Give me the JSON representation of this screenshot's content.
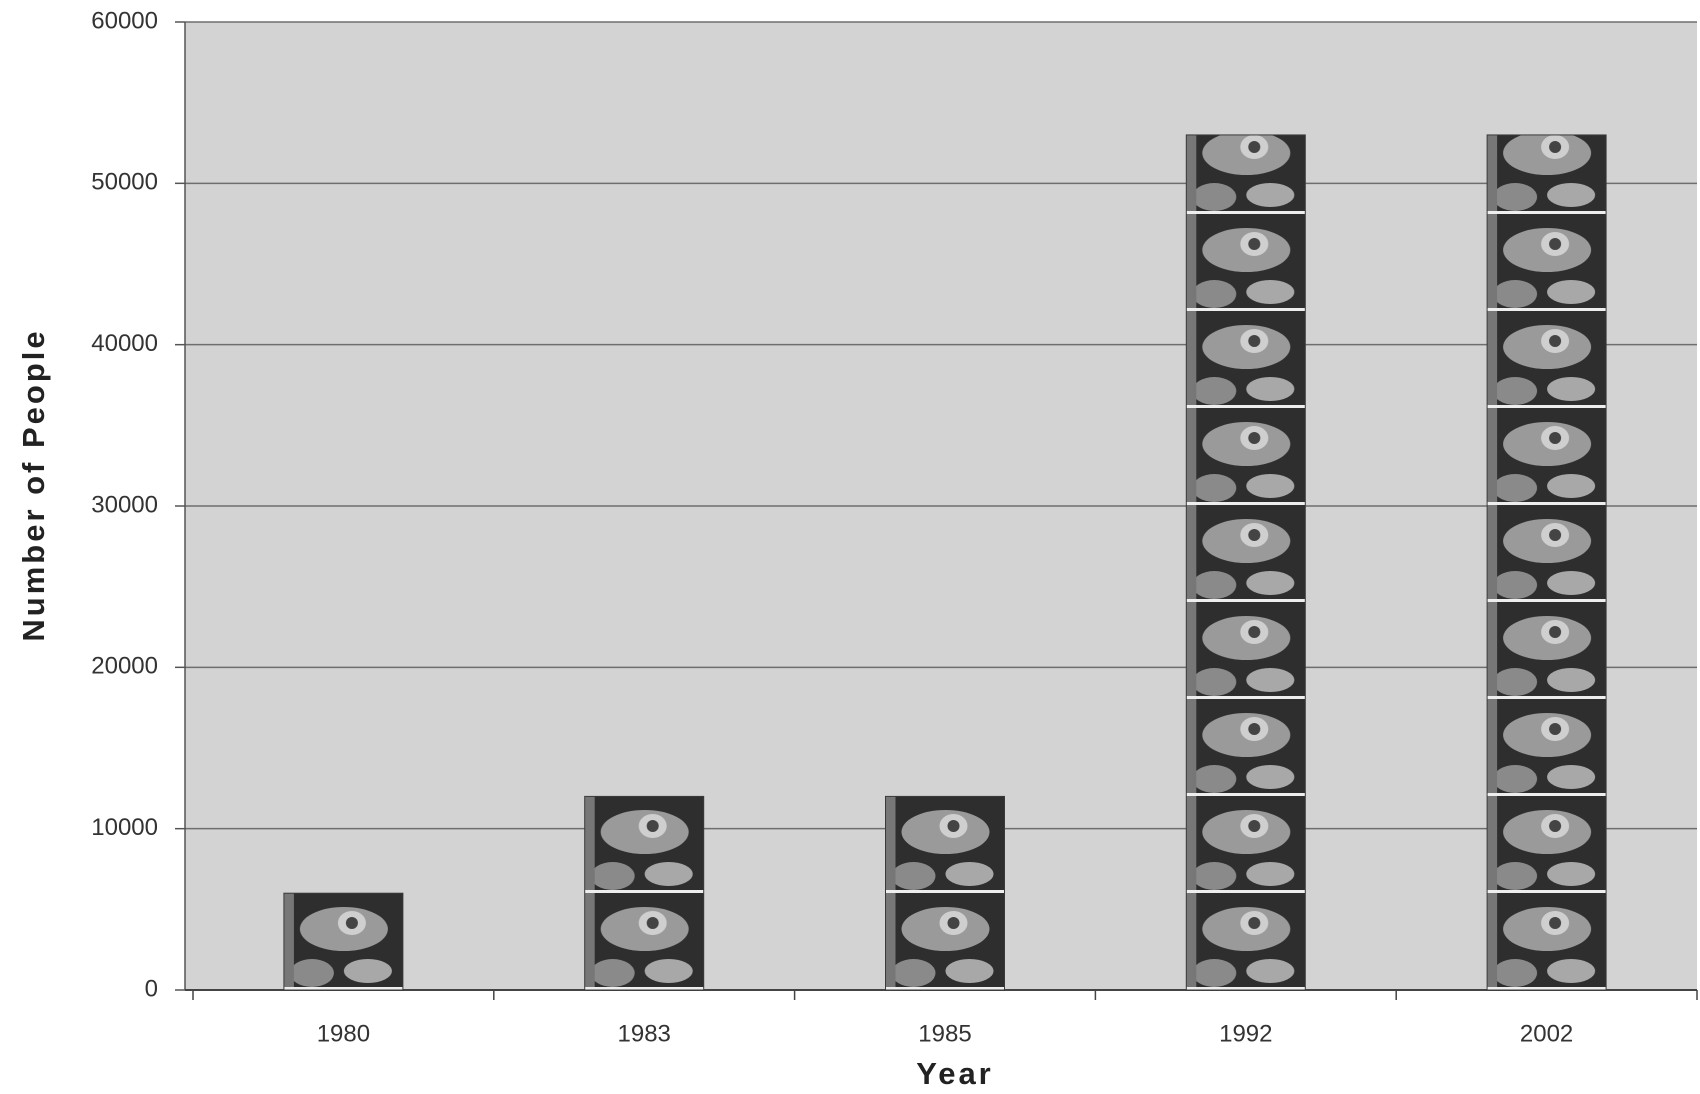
{
  "chart_data": {
    "type": "bar",
    "categories": [
      "1980",
      "1983",
      "1985",
      "1992",
      "2002"
    ],
    "values": [
      6000,
      12000,
      12000,
      53000,
      53000
    ],
    "ylim": [
      0,
      60000
    ],
    "yticks": [
      0,
      10000,
      20000,
      30000,
      40000,
      50000,
      60000
    ],
    "grid": true,
    "xlabel": "Year",
    "ylabel": "Number of People",
    "color": "#3a3a3a"
  }
}
